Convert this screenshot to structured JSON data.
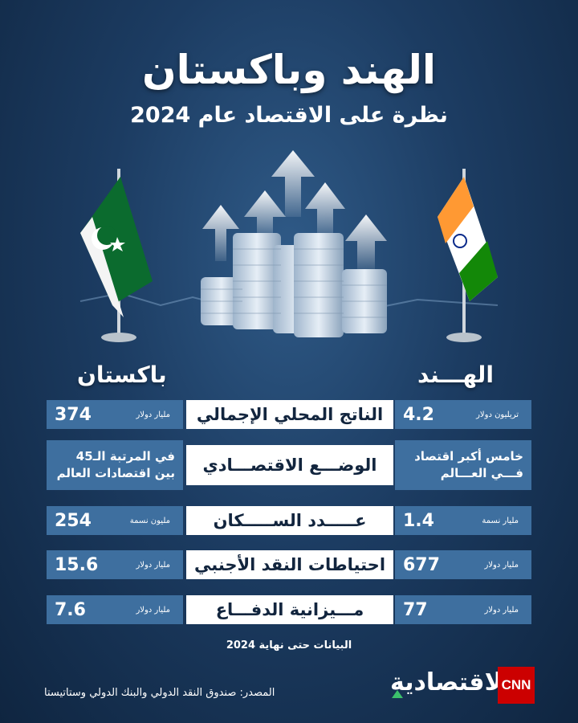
{
  "header": {
    "title": "الهند وباكستان",
    "subtitle": "نظرة على الاقتصاد عام 2024"
  },
  "countries": {
    "left": "باكستان",
    "right": "الهـــند"
  },
  "rows": [
    {
      "indicator": "الناتج المحلي الإجمالي",
      "pakistan": {
        "value": "374",
        "unit": "مليار دولار"
      },
      "india": {
        "value": "4.2",
        "unit": "تريليون دولار"
      }
    },
    {
      "indicator": "الوضـــع الاقتصـــادي",
      "pakistan": {
        "text": "في المرتبة الـ45 بين اقتصادات العالم"
      },
      "india": {
        "text": "خامس أكبر اقتصاد فـــي العـــالم"
      }
    },
    {
      "indicator": "عـــــدد الســـــكان",
      "pakistan": {
        "value": "254",
        "unit": "مليون نسمة"
      },
      "india": {
        "value": "1.4",
        "unit": "مليار نسمة"
      }
    },
    {
      "indicator": "احتياطات النقد الأجنبي",
      "pakistan": {
        "value": "15.6",
        "unit": "مليار دولار"
      },
      "india": {
        "value": "677",
        "unit": "مليار دولار"
      }
    },
    {
      "indicator": "مـــيزانية الدفـــاع",
      "pakistan": {
        "value": "7.6",
        "unit": "مليار دولار"
      },
      "india": {
        "value": "77",
        "unit": "مليار دولار"
      }
    }
  ],
  "footer": {
    "note": "البيانات حتى نهاية 2024",
    "source": "المصدر: صندوق النقد الدولي والبنك الدولي وستاتيستا",
    "brand": "الاقتصادية",
    "cnn": "CNN"
  },
  "colors": {
    "row_bg": "#3e6f9f",
    "accent_green": "#3cc06c",
    "cnn_red": "#cc0000"
  }
}
